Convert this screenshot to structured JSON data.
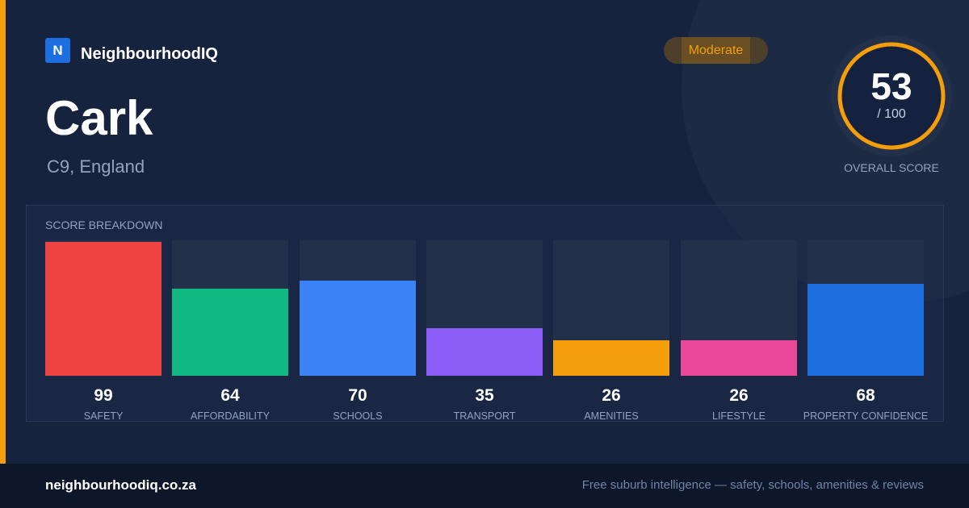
{
  "brand": {
    "logo_letter": "N",
    "name": "NeighbourhoodIQ"
  },
  "suburb": {
    "name": "Cark",
    "location": "C9, England"
  },
  "rating": {
    "label": "Moderate",
    "color": "#f59e0b"
  },
  "overall_score": {
    "value": "53",
    "max_label": "/ 100",
    "caption": "OVERALL SCORE",
    "fraction": 0.53
  },
  "breakdown": {
    "title": "SCORE BREAKDOWN",
    "metrics": [
      {
        "label": "SAFETY",
        "value": 99,
        "color": "#ef4444"
      },
      {
        "label": "AFFORDABILITY",
        "value": 64,
        "color": "#10b981"
      },
      {
        "label": "SCHOOLS",
        "value": 70,
        "color": "#3b82f6"
      },
      {
        "label": "TRANSPORT",
        "value": 35,
        "color": "#8b5cf6"
      },
      {
        "label": "AMENITIES",
        "value": 26,
        "color": "#f59e0b"
      },
      {
        "label": "LIFESTYLE",
        "value": 26,
        "color": "#ec4899"
      },
      {
        "label": "PROPERTY CONFIDENCE",
        "value": 68,
        "color": "#1d6fe0"
      }
    ]
  },
  "footer": {
    "domain": "neighbourhoodiq.co.za",
    "tagline": "Free suburb intelligence — safety, schools, amenities & reviews"
  }
}
